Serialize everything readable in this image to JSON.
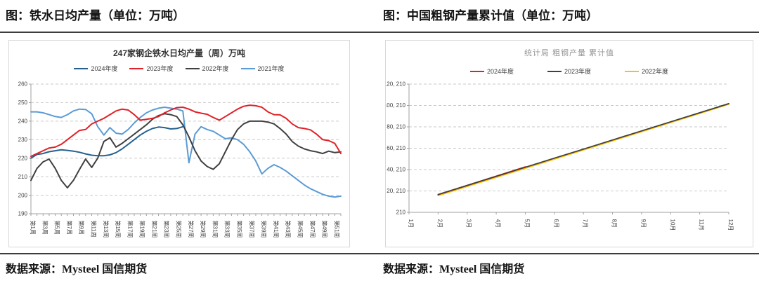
{
  "page": {
    "left_doc_title": "图：铁水日均产量（单位：万吨）",
    "right_doc_title": "图：中国粗钢产量累计值（单位：万吨）",
    "left_source": "数据来源：Mysteel 国信期货",
    "right_source": "数据来源：Mysteel 国信期货"
  },
  "chart_data": [
    {
      "type": "line",
      "title": "247家钢企铁水日均产量（周）万吨",
      "legend_position": "top",
      "grid": "dashed-horizontal",
      "ylim": [
        190,
        260
      ],
      "y_ticks": [
        190,
        200,
        210,
        220,
        230,
        240,
        250,
        260
      ],
      "x_count": 52,
      "x_labels": [
        "第1周",
        "第3周",
        "第5周",
        "第7周",
        "第9周",
        "第11周",
        "第13周",
        "第15周",
        "第17周",
        "第19周",
        "第21周",
        "第23周",
        "第25周",
        "第27周",
        "第29周",
        "第31周",
        "第33周",
        "第35周",
        "第37周",
        "第39周",
        "第41周",
        "第43周",
        "第45周",
        "第47周",
        "第49周",
        "第51周"
      ],
      "series": [
        {
          "name": "2024年度",
          "color": "#24618e",
          "x_start": 1,
          "values": [
            220,
            222,
            222.5,
            223.5,
            224,
            224.5,
            224.2,
            223.8,
            223.2,
            222.3,
            221.6,
            221.3,
            221.3,
            221.8,
            223,
            225,
            227.5,
            230,
            232.5,
            234.5,
            236,
            236.8,
            236.5,
            235.8,
            236,
            237
          ]
        },
        {
          "name": "2023年度",
          "color": "#e02127",
          "x_start": 1,
          "values": [
            221,
            222.5,
            224,
            225.5,
            226,
            227.5,
            230,
            232.5,
            235,
            235.5,
            238.5,
            240,
            241.5,
            243.5,
            245.5,
            246.5,
            246,
            243.5,
            240.5,
            241,
            241.5,
            242.5,
            244.5,
            246,
            247.3,
            247.5,
            246.5,
            245,
            244.3,
            243.7,
            242,
            240.5,
            242.5,
            244.5,
            246.5,
            248,
            248.6,
            248.3,
            247.5,
            245,
            243.5,
            243.4,
            241.5,
            238.5,
            236.5,
            236,
            235.3,
            233,
            230,
            229.5,
            228,
            222.5
          ]
        },
        {
          "name": "2022年度",
          "color": "#404040",
          "x_start": 1,
          "values": [
            208,
            214.5,
            218,
            219.5,
            214.5,
            208,
            204,
            208,
            214,
            219.5,
            215,
            220,
            229,
            231,
            226,
            228,
            230.5,
            233,
            235.5,
            238,
            241,
            243,
            244,
            243.5,
            242.5,
            238,
            231.5,
            224,
            218.5,
            215.5,
            214,
            217,
            223.5,
            230,
            235.5,
            238.5,
            240,
            240,
            240,
            239.5,
            238.5,
            236,
            233,
            229,
            226.5,
            225,
            224,
            223.4,
            222.5,
            223.8,
            223,
            223.4
          ]
        },
        {
          "name": "2021年度",
          "color": "#5b9bd5",
          "x_start": 1,
          "values": [
            245,
            245,
            244.5,
            243.5,
            242.5,
            242,
            243.5,
            245.5,
            246.5,
            246.3,
            244,
            237,
            232.5,
            236.5,
            233.5,
            233,
            235.5,
            239,
            242,
            244.5,
            246,
            247,
            247.5,
            247,
            246.5,
            245.5,
            217.5,
            233,
            237,
            235.5,
            234.5,
            232.5,
            230.5,
            231,
            230,
            227.5,
            223.5,
            218.5,
            211.5,
            214.5,
            216.5,
            215,
            213,
            210.5,
            208,
            205.5,
            203.5,
            202,
            200.5,
            199.5,
            199,
            199.5
          ]
        }
      ]
    },
    {
      "type": "line",
      "title": "统计局 粗钢产量 累计值",
      "legend_position": "top",
      "grid": "dashed-horizontal",
      "ylim": [
        210,
        120210
      ],
      "y_ticks": [
        {
          "v": 210,
          "label": "210"
        },
        {
          "v": 20210,
          "label": "20, 210"
        },
        {
          "v": 40210,
          "label": "40, 210"
        },
        {
          "v": 60210,
          "label": "60, 210"
        },
        {
          "v": 80210,
          "label": "80, 210"
        },
        {
          "v": 100210,
          "label": "100, 210"
        },
        {
          "v": 120210,
          "label": "120, 210"
        }
      ],
      "x_count": 12,
      "x_labels": [
        "1月",
        "2月",
        "3月",
        "4月",
        "5月",
        "6月",
        "7月",
        "8月",
        "9月",
        "10月",
        "11月",
        "12月"
      ],
      "series": [
        {
          "name": "2024年度",
          "color": "#e02127",
          "x_start": 2,
          "values": [
            16800,
            25400,
            34100,
            42800
          ]
        },
        {
          "name": "2023年度",
          "color": "#404040",
          "x_start": 2,
          "values": [
            16870,
            25370,
            33880,
            42380,
            50890,
            59390,
            67890,
            76400,
            84900,
            93410,
            101910
          ]
        },
        {
          "name": "2022年度",
          "color": "#ffc000",
          "x_start": 2,
          "values": [
            15800,
            24350,
            32900,
            41450,
            50000,
            58550,
            67100,
            75650,
            84200,
            92750,
            101300
          ]
        }
      ]
    }
  ]
}
